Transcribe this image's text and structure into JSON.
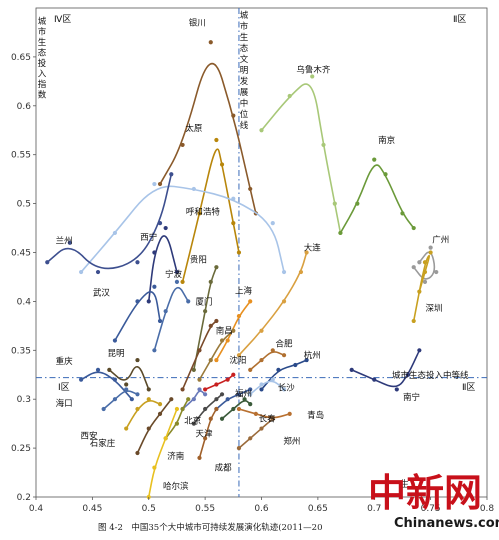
{
  "chart_data": {
    "type": "scatter",
    "xlim": [
      0.4,
      0.8
    ],
    "ylim": [
      0.2,
      0.7
    ],
    "x_ticks": [
      "0.4",
      "0.45",
      "0.5",
      "0.55",
      "0.6",
      "0.65",
      "0.7",
      "0.75",
      "0.8"
    ],
    "y_ticks": [
      "0.2",
      "0.25",
      "0.3",
      "0.35",
      "0.4",
      "0.45",
      "0.5",
      "0.55",
      "0.6",
      "0.65"
    ],
    "x_ref": 0.58,
    "y_ref": 0.322,
    "ref_labels": {
      "vertical": "城市生态文明发展中位线",
      "horizontal": "城市生态投入中等线",
      "y_axis_title": "城市生态投入指数"
    },
    "quadrants": {
      "top_left": "Ⅳ区",
      "top_right": "Ⅱ区",
      "bottom_left": "Ⅰ区",
      "bottom_right": "Ⅱ区"
    },
    "caption": "图 4-2　中国35个大中城市可持续发展演化轨迹(2011—20",
    "series": [
      {
        "name": "银川",
        "color": "#8a5a2b",
        "x": [
          0.51,
          0.53,
          0.555,
          0.575,
          0.59,
          0.595
        ],
        "y": [
          0.52,
          0.56,
          0.665,
          0.59,
          0.515,
          0.49
        ]
      },
      {
        "name": "太原",
        "color": "#b8860b",
        "x": [
          0.53,
          0.545,
          0.56,
          0.565,
          0.575,
          0.58
        ],
        "y": [
          0.42,
          0.49,
          0.565,
          0.54,
          0.48,
          0.45
        ]
      },
      {
        "name": "乌鲁木齐",
        "color": "#a8c878",
        "x": [
          0.6,
          0.625,
          0.645,
          0.655,
          0.665,
          0.67
        ],
        "y": [
          0.575,
          0.61,
          0.63,
          0.56,
          0.5,
          0.47
        ]
      },
      {
        "name": "南京",
        "color": "#6b9a3a",
        "x": [
          0.67,
          0.685,
          0.7,
          0.71,
          0.725,
          0.735
        ],
        "y": [
          0.47,
          0.5,
          0.545,
          0.53,
          0.49,
          0.475
        ]
      },
      {
        "name": "呼和浩特",
        "color": "#a8c4e8",
        "x": [
          0.44,
          0.47,
          0.505,
          0.54,
          0.575,
          0.61,
          0.62
        ],
        "y": [
          0.43,
          0.47,
          0.52,
          0.515,
          0.505,
          0.48,
          0.43
        ]
      },
      {
        "name": "兰州",
        "color": "#3d4f8f",
        "x": [
          0.41,
          0.43,
          0.455,
          0.49,
          0.51,
          0.52
        ],
        "y": [
          0.44,
          0.46,
          0.43,
          0.44,
          0.48,
          0.53
        ]
      },
      {
        "name": "广州",
        "color": "#9a9a9a",
        "x": [
          0.74,
          0.75,
          0.755,
          0.745,
          0.735
        ],
        "y": [
          0.44,
          0.455,
          0.43,
          0.42,
          0.435
        ]
      },
      {
        "name": "深圳",
        "color": "#c8a020",
        "x": [
          0.74,
          0.745,
          0.75,
          0.745,
          0.735
        ],
        "y": [
          0.41,
          0.43,
          0.45,
          0.44,
          0.38
        ]
      },
      {
        "name": "大连",
        "color": "#d9a040",
        "x": [
          0.58,
          0.6,
          0.62,
          0.635,
          0.64
        ],
        "y": [
          0.345,
          0.37,
          0.4,
          0.43,
          0.45
        ]
      },
      {
        "name": "西宁",
        "color": "#2e3a7a",
        "x": [
          0.5,
          0.505,
          0.515,
          0.525
        ],
        "y": [
          0.4,
          0.45,
          0.475,
          0.43
        ]
      },
      {
        "name": "宁波",
        "color": "#4a6da8",
        "x": [
          0.505,
          0.515,
          0.525,
          0.535
        ],
        "y": [
          0.35,
          0.39,
          0.42,
          0.4
        ]
      },
      {
        "name": "贵阳",
        "color": "#6a6a3a",
        "x": [
          0.54,
          0.55,
          0.555,
          0.56
        ],
        "y": [
          0.33,
          0.39,
          0.42,
          0.435
        ]
      },
      {
        "name": "武汉",
        "color": "#3a5a9a",
        "x": [
          0.47,
          0.49,
          0.505,
          0.51
        ],
        "y": [
          0.36,
          0.4,
          0.415,
          0.38
        ]
      },
      {
        "name": "上海",
        "color": "#e89020",
        "x": [
          0.56,
          0.57,
          0.58,
          0.59
        ],
        "y": [
          0.34,
          0.36,
          0.385,
          0.4
        ]
      },
      {
        "name": "厦门",
        "color": "#7a4a2a",
        "x": [
          0.53,
          0.545,
          0.555,
          0.56
        ],
        "y": [
          0.31,
          0.35,
          0.375,
          0.38
        ]
      },
      {
        "name": "南昌",
        "color": "#9a7a3a",
        "x": [
          0.545,
          0.555,
          0.565,
          0.575
        ],
        "y": [
          0.32,
          0.34,
          0.36,
          0.37
        ]
      },
      {
        "name": "合肥",
        "color": "#b07030",
        "x": [
          0.59,
          0.6,
          0.61,
          0.62
        ],
        "y": [
          0.33,
          0.34,
          0.35,
          0.345
        ]
      },
      {
        "name": "杭州",
        "color": "#2a4a8a",
        "x": [
          0.6,
          0.615,
          0.63,
          0.64
        ],
        "y": [
          0.31,
          0.33,
          0.335,
          0.34
        ]
      },
      {
        "name": "昆明",
        "color": "#5a4a2a",
        "x": [
          0.465,
          0.48,
          0.49,
          0.5
        ],
        "y": [
          0.33,
          0.315,
          0.34,
          0.31
        ]
      },
      {
        "name": "重庆",
        "color": "#3a5a9a",
        "x": [
          0.44,
          0.455,
          0.47,
          0.485
        ],
        "y": [
          0.32,
          0.33,
          0.32,
          0.3
        ]
      },
      {
        "name": "沈阳",
        "color": "#c82020",
        "x": [
          0.55,
          0.56,
          0.57,
          0.575
        ],
        "y": [
          0.31,
          0.315,
          0.32,
          0.325
        ]
      },
      {
        "name": "长沙",
        "color": "#a8c4e8",
        "x": [
          0.59,
          0.6,
          0.61,
          0.62
        ],
        "y": [
          0.305,
          0.315,
          0.32,
          0.31
        ]
      },
      {
        "name": "福州",
        "color": "#3a5a9a",
        "x": [
          0.56,
          0.57,
          0.58,
          0.59
        ],
        "y": [
          0.29,
          0.3,
          0.305,
          0.31
        ]
      },
      {
        "name": "南宁",
        "color": "#2e3a7a",
        "x": [
          0.68,
          0.7,
          0.72,
          0.73,
          0.74
        ],
        "y": [
          0.33,
          0.32,
          0.31,
          0.325,
          0.35
        ]
      },
      {
        "name": "海口",
        "color": "#4a6da8",
        "x": [
          0.46,
          0.47,
          0.48,
          0.49
        ],
        "y": [
          0.29,
          0.3,
          0.31,
          0.305
        ]
      },
      {
        "name": "青岛",
        "color": "#b87030",
        "x": [
          0.58,
          0.595,
          0.61,
          0.625
        ],
        "y": [
          0.29,
          0.285,
          0.28,
          0.285
        ]
      },
      {
        "name": "北京",
        "color": "#6a7aba",
        "x": [
          0.53,
          0.54,
          0.545,
          0.55
        ],
        "y": [
          0.29,
          0.3,
          0.31,
          0.305
        ]
      },
      {
        "name": "天津",
        "color": "#4a4a4a",
        "x": [
          0.54,
          0.55,
          0.56,
          0.565
        ],
        "y": [
          0.275,
          0.29,
          0.3,
          0.305
        ]
      },
      {
        "name": "长春",
        "color": "#3a5a3a",
        "x": [
          0.565,
          0.575,
          0.585,
          0.59
        ],
        "y": [
          0.28,
          0.29,
          0.3,
          0.295
        ]
      },
      {
        "name": "西安",
        "color": "#c8a020",
        "x": [
          0.48,
          0.49,
          0.5,
          0.51
        ],
        "y": [
          0.27,
          0.29,
          0.3,
          0.295
        ]
      },
      {
        "name": "郑州",
        "color": "#9a6a3a",
        "x": [
          0.58,
          0.59,
          0.6,
          0.61
        ],
        "y": [
          0.25,
          0.26,
          0.27,
          0.28
        ]
      },
      {
        "name": "济南",
        "color": "#8a8a2a",
        "x": [
          0.515,
          0.525,
          0.53,
          0.535
        ],
        "y": [
          0.26,
          0.275,
          0.29,
          0.3
        ]
      },
      {
        "name": "石家庄",
        "color": "#6a4a2a",
        "x": [
          0.49,
          0.5,
          0.51,
          0.52
        ],
        "y": [
          0.245,
          0.27,
          0.285,
          0.3
        ]
      },
      {
        "name": "成都",
        "color": "#a0602a",
        "x": [
          0.545,
          0.55,
          0.555,
          0.56
        ],
        "y": [
          0.24,
          0.26,
          0.28,
          0.29
        ]
      },
      {
        "name": "哈尔滨",
        "color": "#e8c020",
        "x": [
          0.5,
          0.505,
          0.515,
          0.525
        ],
        "y": [
          0.2,
          0.23,
          0.26,
          0.29
        ]
      }
    ],
    "labels": [
      {
        "text": "银川",
        "x": 0.543,
        "y": 0.682
      },
      {
        "text": "乌鲁木齐",
        "x": 0.646,
        "y": 0.634
      },
      {
        "text": "太原",
        "x": 0.54,
        "y": 0.574
      },
      {
        "text": "南京",
        "x": 0.711,
        "y": 0.562
      },
      {
        "text": "呼和浩特",
        "x": 0.548,
        "y": 0.489
      },
      {
        "text": "兰州",
        "x": 0.425,
        "y": 0.459
      },
      {
        "text": "西宁",
        "x": 0.5,
        "y": 0.463
      },
      {
        "text": "大连",
        "x": 0.645,
        "y": 0.452
      },
      {
        "text": "广州",
        "x": 0.759,
        "y": 0.46
      },
      {
        "text": "贵阳",
        "x": 0.544,
        "y": 0.44
      },
      {
        "text": "宁波",
        "x": 0.522,
        "y": 0.425
      },
      {
        "text": "武汉",
        "x": 0.458,
        "y": 0.406
      },
      {
        "text": "上海",
        "x": 0.584,
        "y": 0.408
      },
      {
        "text": "厦门",
        "x": 0.549,
        "y": 0.397
      },
      {
        "text": "深圳",
        "x": 0.753,
        "y": 0.39
      },
      {
        "text": "南昌",
        "x": 0.567,
        "y": 0.367
      },
      {
        "text": "合肥",
        "x": 0.62,
        "y": 0.354
      },
      {
        "text": "昆明",
        "x": 0.471,
        "y": 0.344
      },
      {
        "text": "杭州",
        "x": 0.645,
        "y": 0.342
      },
      {
        "text": "重庆",
        "x": 0.425,
        "y": 0.336
      },
      {
        "text": "沈阳",
        "x": 0.579,
        "y": 0.337
      },
      {
        "text": "长沙",
        "x": 0.622,
        "y": 0.309
      },
      {
        "text": "福州",
        "x": 0.584,
        "y": 0.303
      },
      {
        "text": "南宁",
        "x": 0.733,
        "y": 0.299
      },
      {
        "text": "海口",
        "x": 0.425,
        "y": 0.293
      },
      {
        "text": "青岛",
        "x": 0.648,
        "y": 0.281
      },
      {
        "text": "北京",
        "x": 0.539,
        "y": 0.275
      },
      {
        "text": "长春",
        "x": 0.605,
        "y": 0.277
      },
      {
        "text": "天津",
        "x": 0.549,
        "y": 0.262
      },
      {
        "text": "西安",
        "x": 0.447,
        "y": 0.26
      },
      {
        "text": "郑州",
        "x": 0.627,
        "y": 0.254
      },
      {
        "text": "济南",
        "x": 0.524,
        "y": 0.239
      },
      {
        "text": "石家庄",
        "x": 0.459,
        "y": 0.252
      },
      {
        "text": "成都",
        "x": 0.566,
        "y": 0.227
      },
      {
        "text": "哈尔滨",
        "x": 0.524,
        "y": 0.208
      }
    ]
  },
  "watermark": {
    "logo_text": "中新网",
    "site": "Chinanews.com",
    "frag": "生"
  }
}
